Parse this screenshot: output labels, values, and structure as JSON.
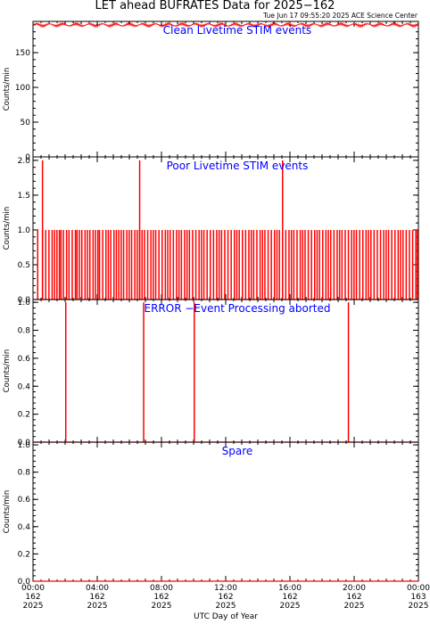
{
  "title": "LET ahead BUFRATES Data for 2025−162",
  "timestamp": "Tue Jun 17 09:55:20 2025 ACE Science Center",
  "xlabel": "UTC Day of Year",
  "colors": {
    "trace": "#ff0000",
    "panel_label": "#0000ff",
    "axes": "#000000"
  },
  "chart_data": [
    {
      "type": "line",
      "label": "Clean Livetime STIM events",
      "ylabel": "Counts/min",
      "ylim": [
        0,
        195
      ],
      "yticks": [
        0,
        50,
        100,
        150
      ],
      "xlim": [
        0,
        24
      ],
      "series": [
        {
          "baseline": 190,
          "jitter": 3.0,
          "spikes": []
        }
      ]
    },
    {
      "type": "line",
      "label": "Poor Livetime STIM events",
      "ylabel": "Counts/min",
      "ylim": [
        0,
        2.05
      ],
      "yticks": [
        0.0,
        0.5,
        1.0,
        1.5,
        2.0
      ],
      "xlim": [
        0,
        24
      ],
      "series": [
        {
          "baseline": 0,
          "ones": [
            0.25,
            0.55,
            0.75,
            0.95,
            1.15,
            1.3,
            1.45,
            1.6,
            1.7,
            1.85,
            2.05,
            2.2,
            2.4,
            2.6,
            2.7,
            2.85,
            3.0,
            3.2,
            3.35,
            3.5,
            3.7,
            3.85,
            4.0,
            4.1,
            4.3,
            4.5,
            4.65,
            4.8,
            5.0,
            5.15,
            5.3,
            5.45,
            5.6,
            5.8,
            5.95,
            6.1,
            6.3,
            6.45,
            6.6,
            6.75,
            6.9,
            7.1,
            7.3,
            7.45,
            7.6,
            7.8,
            8.0,
            8.2,
            8.35,
            8.5,
            8.7,
            8.9,
            9.05,
            9.2,
            9.4,
            9.55,
            9.7,
            9.9,
            10.1,
            10.3,
            10.45,
            10.6,
            10.8,
            11.0,
            11.2,
            11.4,
            11.55,
            11.7,
            11.9,
            12.1,
            12.3,
            12.5,
            12.65,
            12.8,
            13.0,
            13.2,
            13.4,
            13.55,
            13.7,
            13.9,
            14.1,
            14.25,
            14.4,
            14.6,
            14.8,
            15.0,
            15.15,
            15.3,
            15.5,
            15.7,
            15.9,
            16.05,
            16.2,
            16.4,
            16.6,
            16.75,
            16.9,
            17.1,
            17.3,
            17.5,
            17.65,
            17.8,
            18.0,
            18.2,
            18.35,
            18.5,
            18.7,
            18.9,
            19.05,
            19.2,
            19.4,
            19.6,
            19.8,
            19.95,
            20.1,
            20.3,
            20.5,
            20.7,
            20.85,
            21.0,
            21.2,
            21.4,
            21.6,
            21.8,
            21.95,
            22.1,
            22.3,
            22.5,
            22.7,
            22.85,
            23.0,
            23.2,
            23.4,
            23.6,
            23.8,
            23.9
          ],
          "spikes": [
            [
              0.55,
              2
            ],
            [
              6.6,
              2
            ],
            [
              15.5,
              2
            ]
          ]
        }
      ]
    },
    {
      "type": "line",
      "label": "ERROR −Event Processing aborted",
      "ylabel": "Counts/min",
      "ylim": [
        0,
        1.02
      ],
      "yticks": [
        0.0,
        0.2,
        0.4,
        0.6,
        0.8,
        1.0
      ],
      "xlim": [
        0,
        24
      ],
      "series": [
        {
          "baseline": 0,
          "ones": [],
          "spikes": [
            [
              2.0,
              1
            ],
            [
              6.85,
              1
            ],
            [
              10.0,
              1
            ],
            [
              19.6,
              1
            ]
          ]
        }
      ]
    },
    {
      "type": "line",
      "label": "Spare",
      "ylabel": "Counts/min",
      "ylim": [
        0,
        1.02
      ],
      "yticks": [
        0.0,
        0.2,
        0.4,
        0.6,
        0.8,
        1.0
      ],
      "xlim": [
        0,
        24
      ],
      "series": [
        {
          "baseline": 0,
          "ones": [],
          "spikes": []
        }
      ]
    }
  ],
  "xticks": [
    {
      "hour": 0,
      "time": "00:00",
      "doy": "162",
      "year": "2025"
    },
    {
      "hour": 4,
      "time": "04:00",
      "doy": "162",
      "year": "2025"
    },
    {
      "hour": 8,
      "time": "08:00",
      "doy": "162",
      "year": "2025"
    },
    {
      "hour": 12,
      "time": "12:00",
      "doy": "162",
      "year": "2025"
    },
    {
      "hour": 16,
      "time": "16:00",
      "doy": "162",
      "year": "2025"
    },
    {
      "hour": 20,
      "time": "20:00",
      "doy": "162",
      "year": "2025"
    },
    {
      "hour": 24,
      "time": "00:00",
      "doy": "163",
      "year": "2025"
    }
  ]
}
